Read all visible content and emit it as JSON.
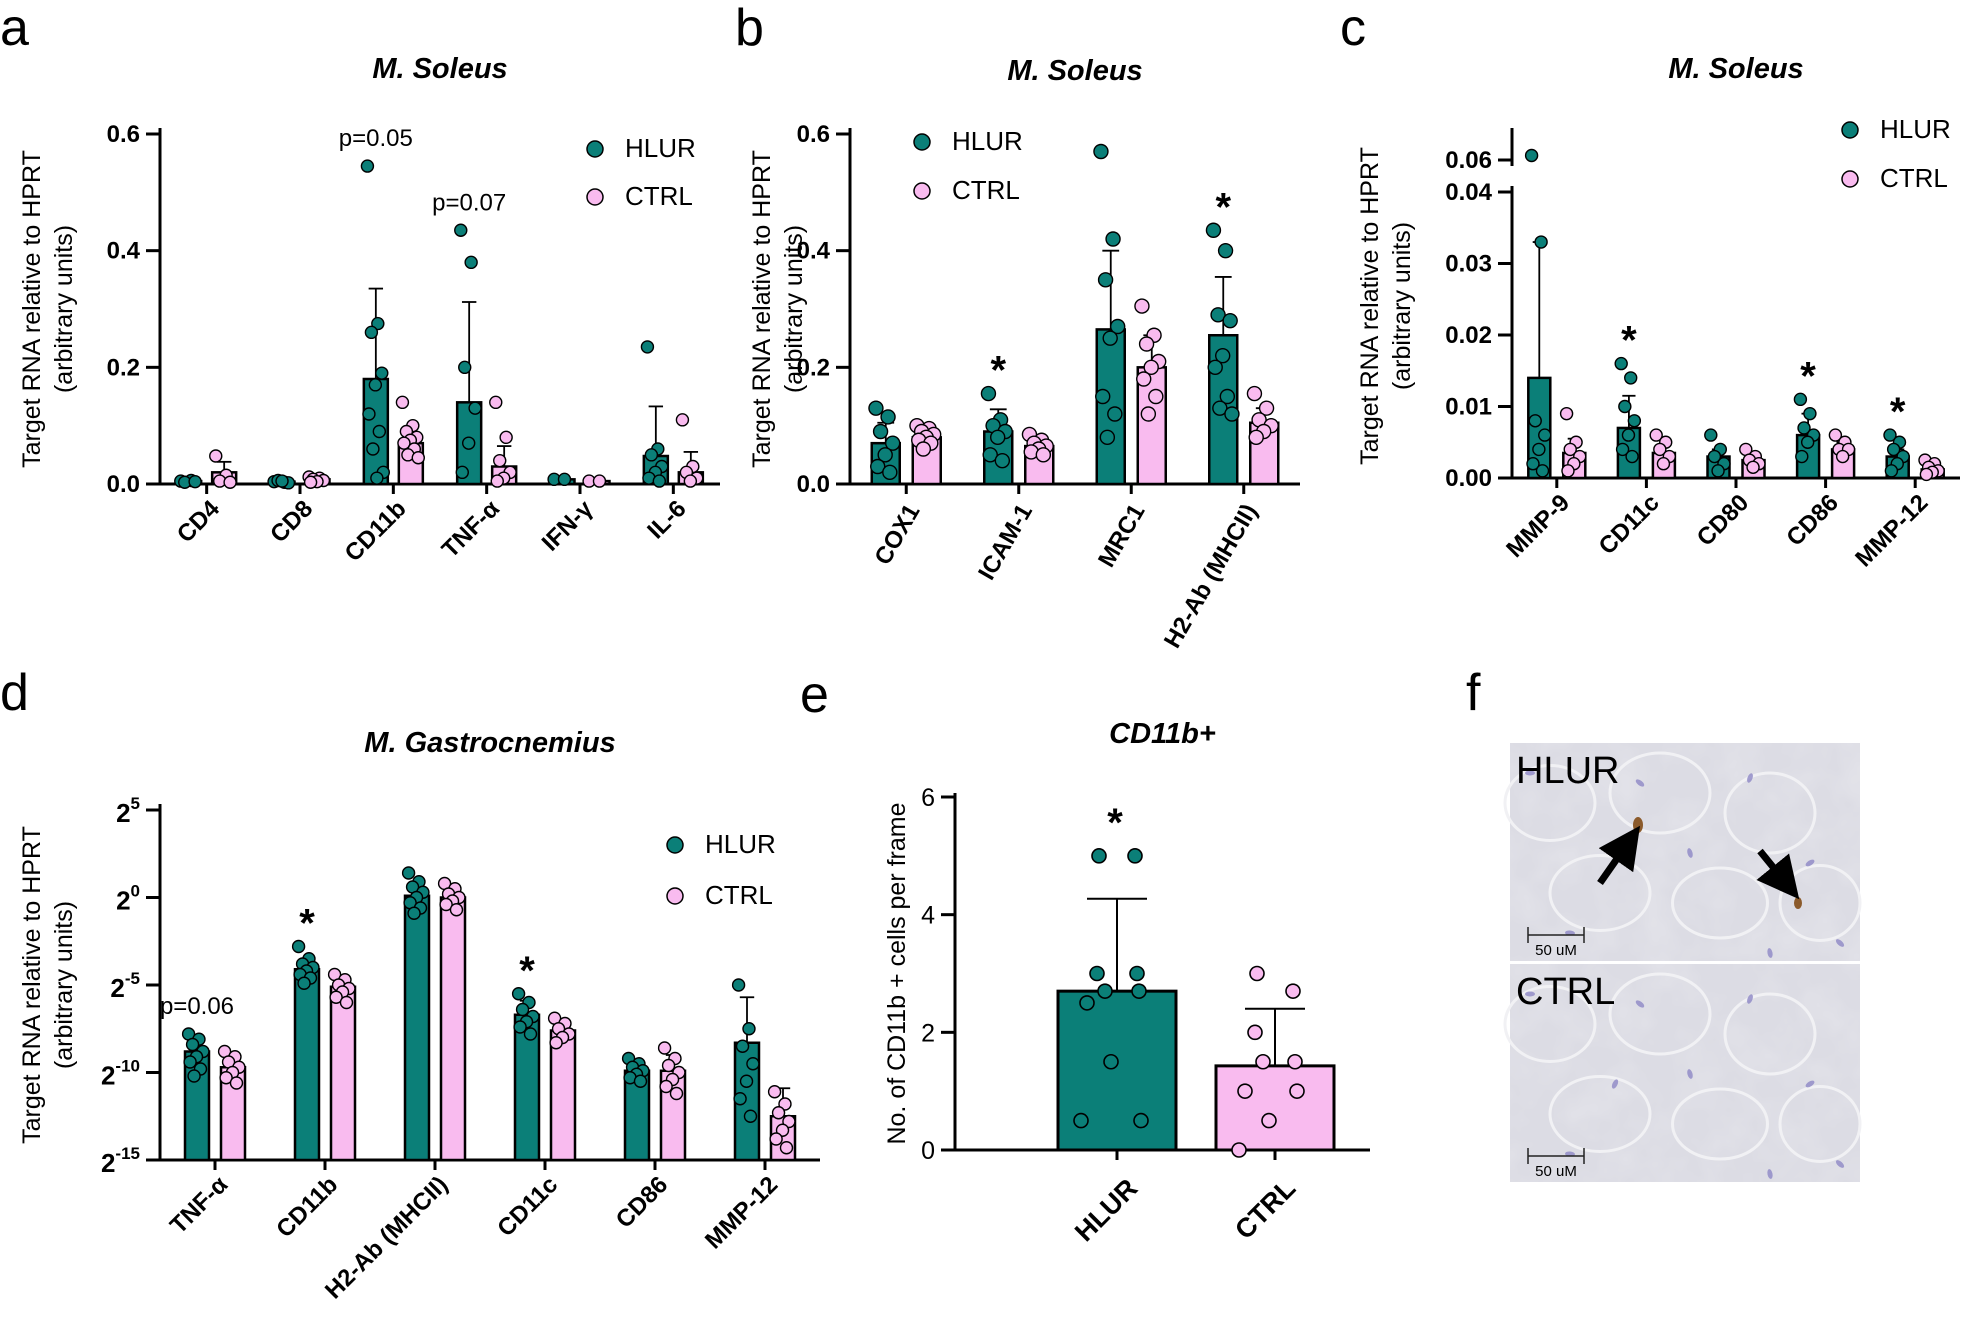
{
  "colors": {
    "hlur": "#0b7f78",
    "ctrl": "#f9bbef",
    "stroke": "#000000"
  },
  "panels": [
    {
      "letter": "a",
      "title": "M. Soleus",
      "title_italic": true,
      "ylabel": [
        "Target RNA relative to HPRT",
        "(arbitrary units)"
      ],
      "legend": [
        "HLUR",
        "CTRL"
      ],
      "yticks": [
        "0.0",
        "0.2",
        "0.4",
        "0.6"
      ]
    },
    {
      "letter": "b",
      "title": "M. Soleus",
      "title_italic": true,
      "ylabel": [
        "Target RNA relative to HPRT",
        "(arbitrary units)"
      ],
      "legend": [
        "HLUR",
        "CTRL"
      ],
      "yticks": [
        "0.0",
        "0.2",
        "0.4",
        "0.6"
      ]
    },
    {
      "letter": "c",
      "title": "M. Soleus",
      "title_italic": true,
      "ylabel": [
        "Target RNA relative to HPRT",
        "(arbitrary units)"
      ],
      "legend": [
        "HLUR",
        "CTRL"
      ],
      "yticks": [
        "0.00",
        "0.01",
        "0.02",
        "0.03",
        "0.04",
        "0.06"
      ]
    },
    {
      "letter": "d",
      "title": "M. Gastrocnemius",
      "title_italic": true,
      "ylabel": [
        "Target RNA relative to HPRT",
        "(arbitrary units)"
      ],
      "legend": [
        "HLUR",
        "CTRL"
      ],
      "yticks": [
        {
          "base": "2",
          "exp": "-15"
        },
        {
          "base": "2",
          "exp": "-10"
        },
        {
          "base": "2",
          "exp": "-5"
        },
        {
          "base": "2",
          "exp": "0"
        },
        {
          "base": "2",
          "exp": "5"
        }
      ]
    },
    {
      "letter": "e",
      "title": "CD11b+",
      "title_italic": true,
      "ylabel": [
        "No. of CD11b + cells per frame"
      ],
      "yticks": [
        "0",
        "2",
        "4",
        "6"
      ]
    },
    {
      "letter": "f",
      "micrographs": [
        {
          "label": "HLUR",
          "scale": "50 uM"
        },
        {
          "label": "CTRL",
          "scale": "50 uM"
        }
      ]
    }
  ],
  "chart_data": [
    {
      "panel": "a",
      "type": "bar",
      "title": "M. Soleus",
      "xlabel": "",
      "ylabel": "Target RNA relative to HPRT (arbitrary units)",
      "ylim": [
        0,
        0.6
      ],
      "categories": [
        "CD4",
        "CD8",
        "CD11b",
        "TNF-α",
        "IFN-γ",
        "IL-6"
      ],
      "series": [
        {
          "name": "HLUR",
          "values": [
            0.005,
            0.004,
            0.18,
            0.14,
            0.008,
            0.048
          ],
          "errors": [
            0.002,
            0.002,
            0.155,
            0.172,
            0.002,
            0.085
          ],
          "points": [
            [
              0.005,
              0.006,
              0.003,
              0.004
            ],
            [
              0.004,
              0.003,
              0.006,
              0.002,
              0.005
            ],
            [
              0.545,
              0.275,
              0.26,
              0.19,
              0.17,
              0.12,
              0.09,
              0.06,
              0.02,
              0.01
            ],
            [
              0.435,
              0.38,
              0.2,
              0.13,
              0.07,
              0.02
            ],
            [
              0.008,
              0.008
            ],
            [
              0.235,
              0.06,
              0.05,
              0.03,
              0.02,
              0.01,
              0.005
            ]
          ]
        },
        {
          "name": "CTRL",
          "values": [
            0.02,
            0.008,
            0.07,
            0.03,
            0.005,
            0.02
          ],
          "errors": [
            0.018,
            0.004,
            0.025,
            0.035,
            0.002,
            0.035
          ],
          "points": [
            [
              0.048,
              0.015,
              0.005,
              0.003
            ],
            [
              0.012,
              0.01,
              0.008,
              0.006,
              0.004,
              0.003
            ],
            [
              0.14,
              0.1,
              0.09,
              0.08,
              0.075,
              0.07,
              0.06,
              0.05,
              0.045
            ],
            [
              0.14,
              0.08,
              0.04,
              0.02,
              0.01,
              0.005
            ],
            [
              0.005,
              0.005
            ],
            [
              0.11,
              0.03,
              0.02,
              0.01,
              0.005
            ]
          ]
        }
      ],
      "annotations": [
        {
          "category": "CD11b",
          "text": "p=0.05"
        },
        {
          "category": "TNF-α",
          "text": "p=0.07"
        }
      ]
    },
    {
      "panel": "b",
      "type": "bar",
      "title": "M. Soleus",
      "xlabel": "",
      "ylabel": "Target RNA relative to HPRT (arbitrary units)",
      "ylim": [
        0,
        0.6
      ],
      "categories": [
        "COX1",
        "ICAM-1",
        "MRC1",
        "H2-Ab (MHCII)"
      ],
      "series": [
        {
          "name": "HLUR",
          "values": [
            0.07,
            0.09,
            0.265,
            0.255
          ],
          "errors": [
            0.035,
            0.038,
            0.135,
            0.1
          ],
          "points": [
            [
              0.13,
              0.115,
              0.09,
              0.07,
              0.05,
              0.03,
              0.02
            ],
            [
              0.155,
              0.11,
              0.1,
              0.09,
              0.08,
              0.05,
              0.04
            ],
            [
              0.57,
              0.42,
              0.35,
              0.27,
              0.25,
              0.15,
              0.12,
              0.08
            ],
            [
              0.435,
              0.4,
              0.29,
              0.28,
              0.22,
              0.2,
              0.15,
              0.13,
              0.12
            ]
          ]
        },
        {
          "name": "CTRL",
          "values": [
            0.08,
            0.065,
            0.2,
            0.105
          ],
          "errors": [
            0.015,
            0.015,
            0.055,
            0.025
          ],
          "points": [
            [
              0.1,
              0.095,
              0.09,
              0.085,
              0.08,
              0.075,
              0.07,
              0.06
            ],
            [
              0.085,
              0.075,
              0.07,
              0.065,
              0.06,
              0.055,
              0.05
            ],
            [
              0.305,
              0.255,
              0.24,
              0.21,
              0.2,
              0.18,
              0.15,
              0.12
            ],
            [
              0.155,
              0.13,
              0.11,
              0.1,
              0.09,
              0.08
            ]
          ]
        }
      ],
      "annotations": [
        {
          "category": "ICAM-1",
          "text": "*"
        },
        {
          "category": "H2-Ab (MHCII)",
          "text": "*"
        }
      ]
    },
    {
      "panel": "c",
      "type": "bar",
      "title": "M. Soleus",
      "xlabel": "",
      "ylabel": "Target RNA relative to HPRT (arbitrary units)",
      "ylim": [
        0,
        0.04
      ],
      "ybreak": {
        "from": 0.04,
        "upper_tick": 0.06
      },
      "categories": [
        "MMP-9",
        "CD11c",
        "CD80",
        "CD86",
        "MMP-12"
      ],
      "series": [
        {
          "name": "HLUR",
          "values": [
            0.014,
            0.007,
            0.003,
            0.006,
            0.003
          ],
          "errors": [
            0.019,
            0.0045,
            0.001,
            0.003,
            0.001
          ],
          "points": [
            [
              0.063,
              0.033,
              0.008,
              0.006,
              0.004,
              0.002,
              0.001
            ],
            [
              0.016,
              0.014,
              0.01,
              0.008,
              0.006,
              0.004,
              0.003
            ],
            [
              0.006,
              0.004,
              0.003,
              0.002,
              0.001
            ],
            [
              0.011,
              0.009,
              0.007,
              0.006,
              0.005,
              0.003
            ],
            [
              0.006,
              0.005,
              0.004,
              0.003,
              0.002,
              0.001
            ]
          ]
        },
        {
          "name": "CTRL",
          "values": [
            0.0035,
            0.0035,
            0.0025,
            0.004,
            0.0012
          ],
          "errors": [
            0.002,
            0.001,
            0.001,
            0.001,
            0.0004
          ],
          "points": [
            [
              0.009,
              0.005,
              0.004,
              0.003,
              0.002,
              0.001
            ],
            [
              0.006,
              0.005,
              0.004,
              0.003,
              0.002
            ],
            [
              0.004,
              0.003,
              0.0025,
              0.002,
              0.0015
            ],
            [
              0.006,
              0.005,
              0.004,
              0.004,
              0.003
            ],
            [
              0.0025,
              0.002,
              0.0015,
              0.001,
              0.0008,
              0.0005
            ]
          ]
        }
      ],
      "annotations": [
        {
          "category": "CD11c",
          "text": "*"
        },
        {
          "category": "CD86",
          "text": "*"
        },
        {
          "category": "MMP-12",
          "text": "*"
        }
      ]
    },
    {
      "panel": "d",
      "type": "bar",
      "title": "M. Gastrocnemius",
      "yscale": "log2",
      "xlabel": "",
      "ylabel": "Target RNA relative to HPRT (arbitrary units)",
      "ylim": [
        -15,
        5
      ],
      "categories": [
        "TNF-α",
        "CD11b",
        "H2-Ab (MHCII)",
        "CD11c",
        "CD86",
        "MMP-12"
      ],
      "series": [
        {
          "name": "HLUR",
          "values": [
            -8.8,
            -4.1,
            0.1,
            -6.7,
            -9.9,
            -8.3
          ],
          "errors": [
            0.7,
            0.5,
            0.6,
            0.8,
            0.4,
            2.6
          ],
          "points": [
            [
              -7.8,
              -8.1,
              -8.4,
              -8.8,
              -9.1,
              -9.4,
              -9.8,
              -10.2
            ],
            [
              -2.8,
              -3.5,
              -3.8,
              -4.0,
              -4.2,
              -4.4,
              -4.6,
              -4.9
            ],
            [
              1.4,
              0.9,
              0.6,
              0.3,
              0,
              -0.3,
              -0.6,
              -0.9
            ],
            [
              -5.5,
              -6.0,
              -6.4,
              -6.8,
              -7.1,
              -7.4,
              -7.8
            ],
            [
              -9.2,
              -9.5,
              -9.7,
              -9.9,
              -10.1,
              -10.3,
              -10.5
            ],
            [
              -5.0,
              -7.5,
              -8.5,
              -9.5,
              -10.5,
              -11.5,
              -12.5
            ]
          ]
        },
        {
          "name": "CTRL",
          "values": [
            -9.7,
            -5.1,
            0,
            -7.6,
            -9.9,
            -12.5
          ],
          "errors": [
            0.5,
            0.5,
            0.5,
            0.5,
            0.9,
            1.6
          ],
          "points": [
            [
              -8.8,
              -9.1,
              -9.4,
              -9.7,
              -10.0,
              -10.3,
              -10.6
            ],
            [
              -4.4,
              -4.7,
              -5.0,
              -5.2,
              -5.4,
              -5.7,
              -6.0
            ],
            [
              0.8,
              0.5,
              0.2,
              0,
              -0.2,
              -0.4,
              -0.7
            ],
            [
              -6.9,
              -7.2,
              -7.5,
              -7.8,
              -8.0,
              -8.3
            ],
            [
              -8.6,
              -9.2,
              -9.6,
              -10.0,
              -10.4,
              -10.8,
              -11.2
            ],
            [
              -11.1,
              -11.8,
              -12.3,
              -12.8,
              -13.3,
              -13.8,
              -14.3
            ]
          ]
        }
      ],
      "annotations": [
        {
          "category": "TNF-α",
          "text": "p=0.06"
        },
        {
          "category": "CD11b",
          "text": "*"
        },
        {
          "category": "CD11c",
          "text": "*"
        }
      ]
    },
    {
      "panel": "e",
      "type": "bar",
      "title": "CD11b+",
      "xlabel": "",
      "ylabel": "No. of CD11b + cells per frame",
      "ylim": [
        0,
        6
      ],
      "categories": [
        "HLUR",
        "CTRL"
      ],
      "values": [
        2.7,
        1.43
      ],
      "errors": [
        1.57,
        0.97
      ],
      "points": [
        [
          5,
          5,
          3,
          3,
          2.7,
          2.7,
          2.5,
          1.5,
          0.5,
          0.5
        ],
        [
          3,
          2.7,
          2,
          1.5,
          1.5,
          1,
          1,
          0.5,
          0
        ]
      ],
      "annotations": [
        {
          "category": "HLUR",
          "text": "*"
        }
      ]
    }
  ]
}
